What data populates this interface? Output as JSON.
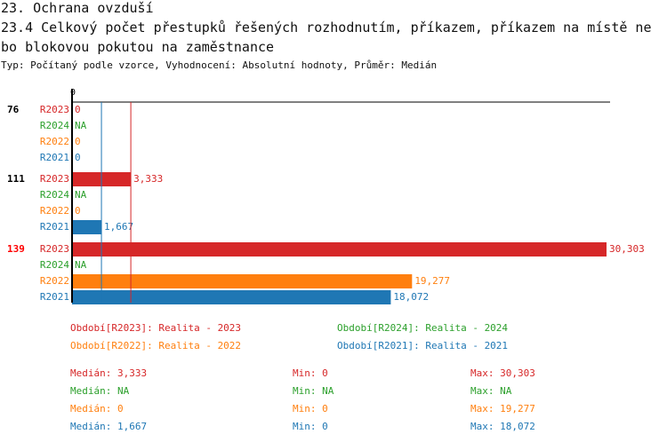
{
  "header": {
    "section": "23. Ochrana ovzduší",
    "title_line1": "23.4 Celkový počet přestupků řešených rozhodnutím, příkazem, příkazem na místě ne",
    "title_line2": "bo blokovou pokutou na zaměstnance",
    "subtitle": "Typ: Počítaný podle vzorce, Vyhodnocení: Absolutní hodnoty, Průměr: Medián"
  },
  "chart_data": {
    "type": "bar",
    "orientation": "horizontal",
    "x_tick_labels": [
      "0"
    ],
    "xlim": [
      0,
      30303
    ],
    "colors": {
      "R2023": "#d62728",
      "R2024": "#2ca02c",
      "R2022": "#ff7f0e",
      "R2021": "#1f77b4"
    },
    "groups": [
      {
        "label": "76",
        "highlight": false,
        "rows": [
          {
            "series": "R2023",
            "value": 0,
            "label": "0"
          },
          {
            "series": "R2024",
            "value": null,
            "label": "NA"
          },
          {
            "series": "R2022",
            "value": 0,
            "label": "0"
          },
          {
            "series": "R2021",
            "value": 0,
            "label": "0"
          }
        ]
      },
      {
        "label": "111",
        "highlight": false,
        "rows": [
          {
            "series": "R2023",
            "value": 3333,
            "label": "3,333"
          },
          {
            "series": "R2024",
            "value": null,
            "label": "NA"
          },
          {
            "series": "R2022",
            "value": 0,
            "label": "0"
          },
          {
            "series": "R2021",
            "value": 1667,
            "label": "1,667"
          }
        ]
      },
      {
        "label": "139",
        "highlight": true,
        "rows": [
          {
            "series": "R2023",
            "value": 30303,
            "label": "30,303"
          },
          {
            "series": "R2024",
            "value": null,
            "label": "NA"
          },
          {
            "series": "R2022",
            "value": 19277,
            "label": "19,277"
          },
          {
            "series": "R2021",
            "value": 18072,
            "label": "18,072"
          }
        ]
      }
    ],
    "median_lines": [
      {
        "series": "R2021",
        "value": 1667
      },
      {
        "series": "R2023",
        "value": 3333
      }
    ],
    "legend": [
      {
        "series": "R2023",
        "text": "Období[R2023]: Realita - 2023"
      },
      {
        "series": "R2024",
        "text": "Období[R2024]: Realita - 2024"
      },
      {
        "series": "R2022",
        "text": "Období[R2022]: Realita - 2022"
      },
      {
        "series": "R2021",
        "text": "Období[R2021]: Realita - 2021"
      }
    ],
    "stats": [
      {
        "series": "R2023",
        "median": "Medián: 3,333",
        "min": "Min: 0",
        "max": "Max: 30,303"
      },
      {
        "series": "R2024",
        "median": "Medián: NA",
        "min": "Min: NA",
        "max": "Max: NA"
      },
      {
        "series": "R2022",
        "median": "Medián: 0",
        "min": "Min: 0",
        "max": "Max: 19,277"
      },
      {
        "series": "R2021",
        "median": "Medián: 1,667",
        "min": "Min: 0",
        "max": "Max: 18,072"
      }
    ]
  }
}
